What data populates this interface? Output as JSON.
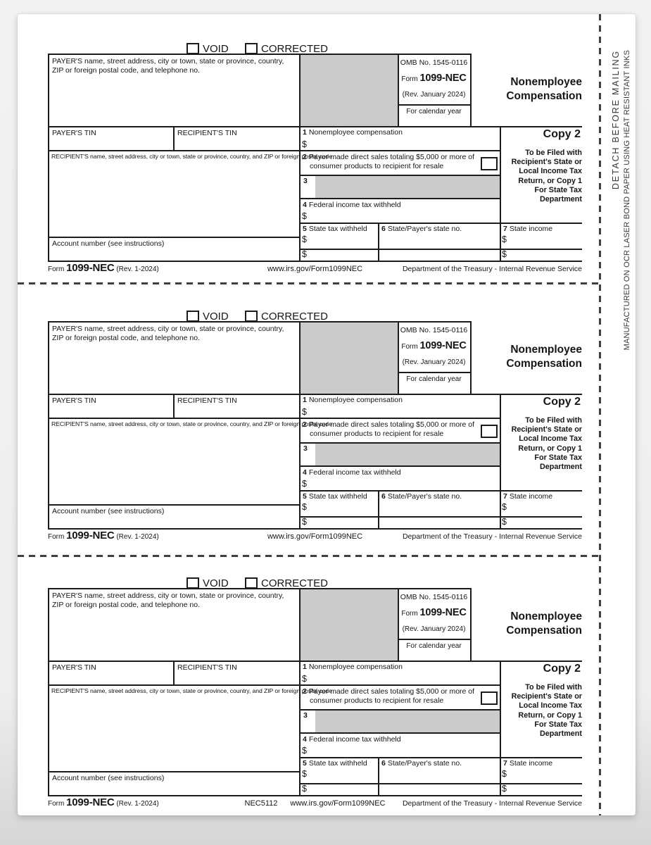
{
  "side": {
    "detach": "DETACH BEFORE MAILING",
    "manufactured": "MANUFACTURED ON OCR LASER BOND PAPER USING HEAT RESISTANT INKS"
  },
  "form": {
    "void_label": "VOID",
    "corrected_label": "CORRECTED",
    "payer_info_label": "PAYER'S name, street address, city or town, state or province, country, ZIP or foreign postal code, and telephone no.",
    "omb_number": "OMB No. 1545-0116",
    "form_word": "Form",
    "form_number": "1099-NEC",
    "revision": "(Rev. January 2024)",
    "calendar_year_label": "For calendar year",
    "title_line1": "Nonemployee",
    "title_line2": "Compensation",
    "payer_tin_label": "PAYER'S TIN",
    "recipient_tin_label": "RECIPIENT'S TIN",
    "recipient_info_label": "RECIPIENT'S name, street address, city or town, state or province, country, and ZIP or foreign postal code",
    "account_label": "Account number (see instructions)",
    "dollar": "$",
    "boxes": {
      "b1": {
        "num": "1",
        "label": "Nonemployee compensation"
      },
      "b2": {
        "num": "2",
        "label": "Payer made direct sales totaling $5,000 or more of consumer products to recipient for resale"
      },
      "b3": {
        "num": "3"
      },
      "b4": {
        "num": "4",
        "label": "Federal income tax withheld"
      },
      "b5": {
        "num": "5",
        "label": "State tax withheld"
      },
      "b6": {
        "num": "6",
        "label": "State/Payer's state no."
      },
      "b7": {
        "num": "7",
        "label": "State income"
      }
    },
    "copy": {
      "title": "Copy 2",
      "desc_lines": [
        "To be Filed with",
        "Recipient's State or",
        "Local Income Tax",
        "Return, or Copy 1",
        "For State Tax",
        "Department"
      ]
    },
    "footer": {
      "form_word": "Form",
      "form_number": "1099-NEC",
      "revision": "(Rev. 1-2024)",
      "url": "www.irs.gov/Form1099NEC",
      "department": "Department of the Treasury - Internal Revenue Service"
    }
  },
  "forms": [
    {},
    {},
    {
      "nec_code": "NEC5112"
    }
  ]
}
